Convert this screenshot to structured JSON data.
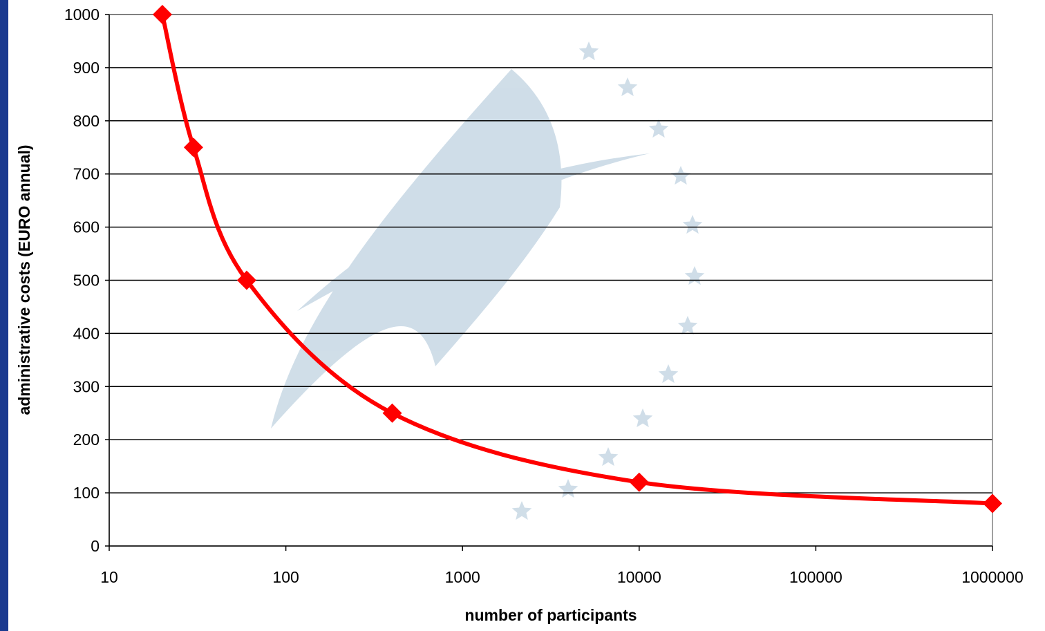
{
  "colors": {
    "left_band": "#1a3a8f",
    "series": "#ff0000",
    "grid": "#000000",
    "watermark": "#a9c3d6"
  },
  "watermark_icon": "eu-star-circle-watermark",
  "chart_data": {
    "type": "line",
    "title": "",
    "xlabel": "number of participants",
    "ylabel": "administrative costs (EURO annual)",
    "xscale": "log",
    "xlim": [
      10,
      1000000
    ],
    "ylim": [
      0,
      1000
    ],
    "xticks": [
      "10",
      "100",
      "1000",
      "10000",
      "100000",
      "1000000"
    ],
    "yticks": [
      "0",
      "100",
      "200",
      "300",
      "400",
      "500",
      "600",
      "700",
      "800",
      "900",
      "1000"
    ],
    "grid": "horizontal",
    "legend": "none",
    "markers": "diamond",
    "series": [
      {
        "x": [
          20,
          30,
          60,
          400,
          10000,
          1000000
        ],
        "y": [
          1000,
          750,
          500,
          250,
          120,
          80
        ]
      }
    ]
  }
}
